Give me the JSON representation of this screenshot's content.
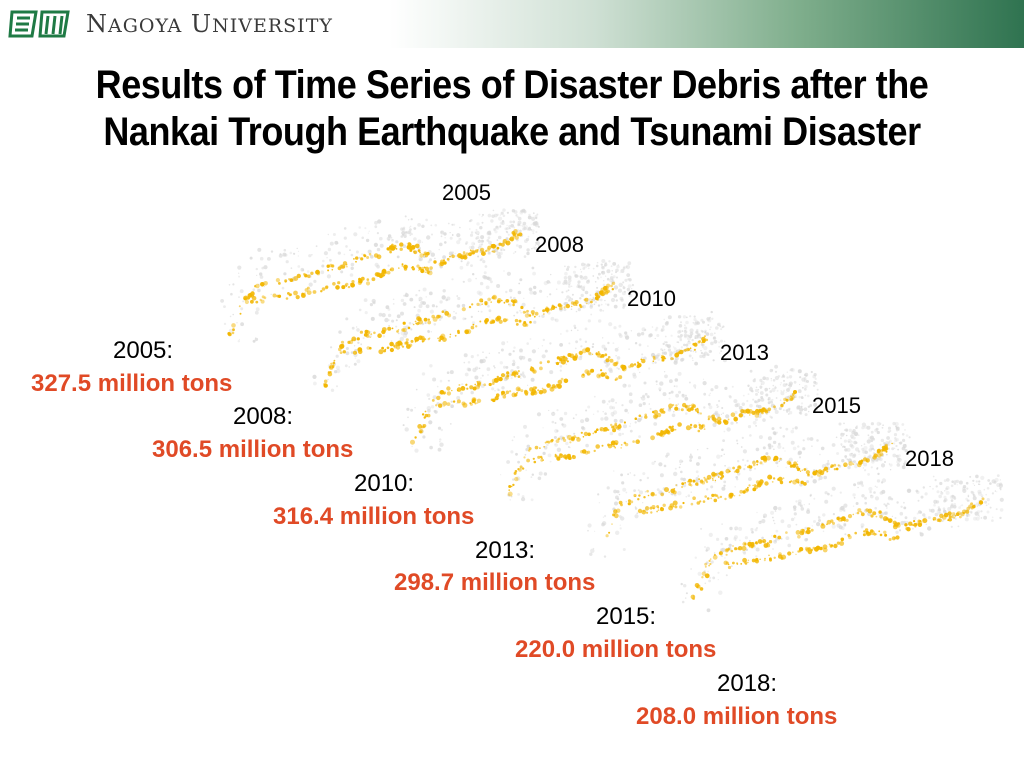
{
  "header": {
    "brand_initial_1": "N",
    "brand_rest_1": "AGOYA",
    "brand_initial_2": "U",
    "brand_rest_2": "NIVERSITY",
    "gradient_end_color": "#2f7350",
    "logo_icon": "nagoya-university-logo"
  },
  "title": {
    "line1": "Results of Time Series of Disaster Debris after the",
    "line2": "Nankai Trough Earthquake and Tsunami Disaster"
  },
  "maps": {
    "years": [
      "2005",
      "2008",
      "2010",
      "2013",
      "2015",
      "2018"
    ]
  },
  "estimates": [
    {
      "year": "2005:",
      "amount": "327.5 million tons"
    },
    {
      "year": "2008:",
      "amount": "306.5 million tons"
    },
    {
      "year": "2010:",
      "amount": "316.4 million tons"
    },
    {
      "year": "2013:",
      "amount": "298.7 million tons"
    },
    {
      "year": "2015:",
      "amount": "220.0 million tons"
    },
    {
      "year": "2018:",
      "amount": "208.0 million tons"
    }
  ],
  "colors": {
    "amount": "#e04a26",
    "debris": "#f2b600",
    "land": "#d9d9d9"
  }
}
